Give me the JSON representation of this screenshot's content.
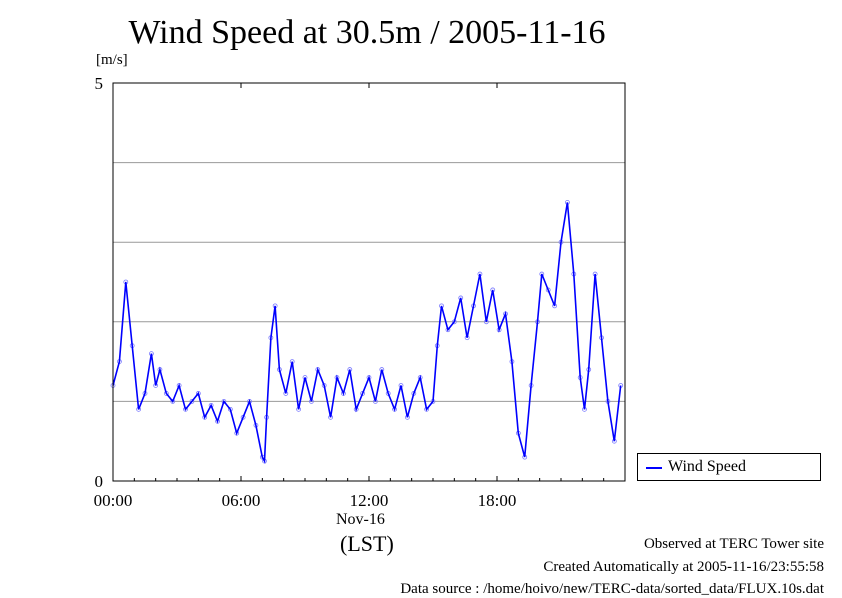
{
  "header": {
    "title": "Wind Speed at 30.5m / 2005-11-16",
    "unit": "[m/s]"
  },
  "chart_data": {
    "type": "scatter",
    "title": "Wind Speed at 30.5m / 2005-11-16",
    "ylabel": "[m/s]",
    "xlabel_date": "Nov-16",
    "xlabel_tz": "(LST)",
    "x_unit": "hours",
    "xlim": [
      0,
      24
    ],
    "ylim": [
      0,
      5
    ],
    "grid": true,
    "legend_position": "bottom-right outside plot",
    "x_ticks": [
      {
        "value": 0,
        "label": "00:00"
      },
      {
        "value": 6,
        "label": "06:00"
      },
      {
        "value": 12,
        "label": "12:00"
      },
      {
        "value": 18,
        "label": "18:00"
      }
    ],
    "y_ticks": [
      {
        "value": 0,
        "label": "0"
      },
      {
        "value": 5,
        "label": "5"
      }
    ],
    "y_gridlines": [
      1,
      2,
      3,
      4
    ],
    "series": [
      {
        "name": "Wind Speed",
        "color": "#0000ff",
        "x": [
          0.0,
          0.3,
          0.6,
          0.9,
          1.2,
          1.5,
          1.8,
          2.0,
          2.2,
          2.5,
          2.8,
          3.1,
          3.4,
          3.7,
          4.0,
          4.3,
          4.6,
          4.9,
          5.2,
          5.5,
          5.8,
          6.1,
          6.4,
          6.7,
          7.0,
          7.1,
          7.2,
          7.4,
          7.6,
          7.8,
          8.1,
          8.4,
          8.7,
          9.0,
          9.3,
          9.6,
          9.9,
          10.2,
          10.5,
          10.8,
          11.1,
          11.4,
          11.7,
          12.0,
          12.3,
          12.6,
          12.9,
          13.2,
          13.5,
          13.8,
          14.1,
          14.4,
          14.7,
          15.0,
          15.2,
          15.4,
          15.7,
          16.0,
          16.3,
          16.6,
          16.9,
          17.2,
          17.5,
          17.8,
          18.1,
          18.4,
          18.7,
          19.0,
          19.3,
          19.6,
          19.9,
          20.1,
          20.4,
          20.7,
          21.0,
          21.3,
          21.6,
          21.9,
          22.1,
          22.3,
          22.6,
          22.9,
          23.2,
          23.5,
          23.8
        ],
        "y": [
          1.2,
          1.5,
          2.5,
          1.7,
          0.9,
          1.1,
          1.6,
          1.2,
          1.4,
          1.1,
          1.0,
          1.2,
          0.9,
          1.0,
          1.1,
          0.8,
          0.95,
          0.75,
          1.0,
          0.9,
          0.6,
          0.8,
          1.0,
          0.7,
          0.3,
          0.25,
          0.8,
          1.8,
          2.2,
          1.4,
          1.1,
          1.5,
          0.9,
          1.3,
          1.0,
          1.4,
          1.2,
          0.8,
          1.3,
          1.1,
          1.4,
          0.9,
          1.1,
          1.3,
          1.0,
          1.4,
          1.1,
          0.9,
          1.2,
          0.8,
          1.1,
          1.3,
          0.9,
          1.0,
          1.7,
          2.2,
          1.9,
          2.0,
          2.3,
          1.8,
          2.2,
          2.6,
          2.0,
          2.4,
          1.9,
          2.1,
          1.5,
          0.6,
          0.3,
          1.2,
          2.0,
          2.6,
          2.4,
          2.2,
          3.0,
          3.5,
          2.6,
          1.3,
          0.9,
          1.4,
          2.6,
          1.8,
          1.0,
          0.5,
          1.2
        ]
      }
    ]
  },
  "legend": {
    "label": "Wind Speed"
  },
  "footer": {
    "observed": "Observed at TERC Tower site",
    "created": "Created Automatically at 2005-11-16/23:55:58",
    "source": "Data source : /home/hoivo/new/TERC-data/sorted_data/FLUX.10s.dat"
  }
}
